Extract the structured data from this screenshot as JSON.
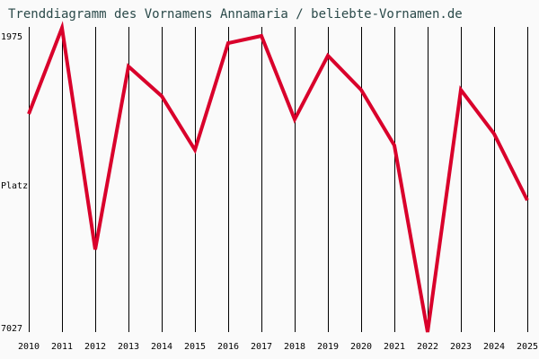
{
  "header": {
    "title": "Trenddiagramm des Vornamens Annamaria / beliebte-Vornamen.de"
  },
  "axis": {
    "y_top_label": "1975",
    "y_mid_label": "Platz",
    "y_bottom_label": "7027"
  },
  "colors": {
    "line": "#d9002b",
    "grid": "#000000",
    "background": "#fafafa",
    "title": "#2b4a4a"
  },
  "chart_data": {
    "type": "line",
    "title": "Trenddiagramm des Vornamens Annamaria / beliebte-Vornamen.de",
    "xlabel": "",
    "ylabel": "Platz",
    "y_inverted": true,
    "ylim": [
      1975,
      7027
    ],
    "grid": "vertical",
    "categories": [
      "2010",
      "2011",
      "2012",
      "2013",
      "2014",
      "2015",
      "2016",
      "2017",
      "2018",
      "2019",
      "2020",
      "2021",
      "2022",
      "2023",
      "2024",
      "2025"
    ],
    "series": [
      {
        "name": "Annamaria",
        "values": [
          3417,
          1990,
          5660,
          2629,
          3120,
          4011,
          2243,
          2124,
          3506,
          2451,
          3016,
          3937,
          7027,
          3016,
          3744,
          4844
        ]
      }
    ]
  }
}
